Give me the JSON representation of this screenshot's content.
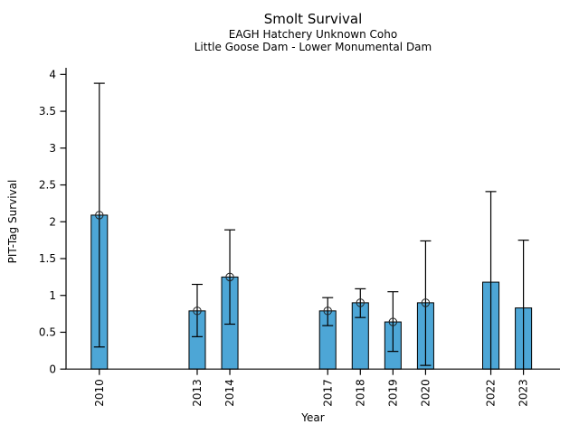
{
  "figure": {
    "title": "Smolt Survival",
    "subtitle_line1": "EAGH Hatchery Unknown Coho",
    "subtitle_line2": "Little Goose Dam - Lower Monumental Dam"
  },
  "chart_data": {
    "type": "bar",
    "title": "Smolt Survival",
    "subtitle1": "EAGH Hatchery Unknown Coho",
    "subtitle2": "Little Goose Dam - Lower Monumental Dam",
    "xlabel": "Year",
    "ylabel": "PIT-Tag Survival",
    "x_tick_labels": [
      "2010",
      "2013",
      "2014",
      "2017",
      "2018",
      "2019",
      "2020",
      "2022",
      "2023"
    ],
    "y_ticks": [
      0,
      0.5,
      1,
      1.5,
      2,
      2.5,
      3,
      3.5,
      4
    ],
    "y_tick_labels": [
      "0",
      "0.5",
      "1",
      "1.5",
      "2",
      "2.5",
      "3",
      "3.5",
      "4"
    ],
    "xlim": [
      2008.98,
      2024.12
    ],
    "ylim": [
      0,
      4.09
    ],
    "grid": false,
    "legend": "none",
    "bar_width_years": 0.5,
    "bar_color": "#4DA6D6",
    "bar_edge_color": "#000000",
    "error_bar_color": "#000000",
    "marker_style": "open-circle",
    "points": [
      {
        "year": 2010,
        "value": 2.09,
        "ci_low": 0.3,
        "ci_high": 3.88,
        "marker": true
      },
      {
        "year": 2013,
        "value": 0.79,
        "ci_low": 0.44,
        "ci_high": 1.15,
        "marker": true
      },
      {
        "year": 2014,
        "value": 1.25,
        "ci_low": 0.61,
        "ci_high": 1.89,
        "marker": true
      },
      {
        "year": 2017,
        "value": 0.79,
        "ci_low": 0.59,
        "ci_high": 0.97,
        "marker": true
      },
      {
        "year": 2018,
        "value": 0.9,
        "ci_low": 0.7,
        "ci_high": 1.09,
        "marker": true
      },
      {
        "year": 2019,
        "value": 0.64,
        "ci_low": 0.24,
        "ci_high": 1.05,
        "marker": true
      },
      {
        "year": 2020,
        "value": 0.9,
        "ci_low": 0.05,
        "ci_high": 1.74,
        "marker": true
      },
      {
        "year": 2022,
        "value": 1.18,
        "ci_low": 0.0,
        "ci_high": 2.41,
        "marker": false
      },
      {
        "year": 2023,
        "value": 0.83,
        "ci_low": 0.0,
        "ci_high": 1.75,
        "marker": false
      }
    ]
  }
}
